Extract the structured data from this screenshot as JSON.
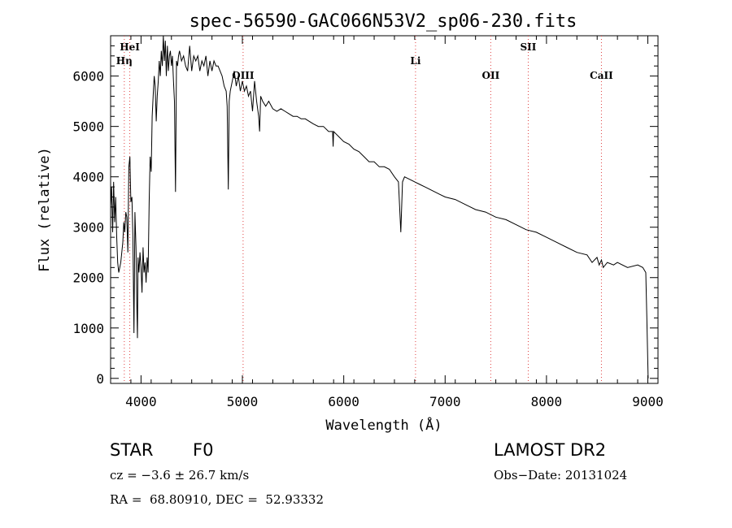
{
  "chart_data": {
    "type": "line",
    "title": "spec-56590-GAC066N53V2_sp06-230.fits",
    "xlabel": "Wavelength (Å)",
    "ylabel": "Flux (relative)",
    "xlim": [
      3700,
      9100
    ],
    "ylim": [
      -100,
      6800
    ],
    "xticks": [
      4000,
      5000,
      6000,
      7000,
      8000,
      9000
    ],
    "yticks": [
      0,
      1000,
      2000,
      3000,
      4000,
      5000,
      6000
    ],
    "lines": [
      {
        "label": "HeI",
        "x": 3889,
        "row": "top"
      },
      {
        "label": "Hη",
        "x": 3835,
        "row": "second"
      },
      {
        "label": "OIII",
        "x": 5007,
        "row": "third"
      },
      {
        "label": "Li",
        "x": 6708,
        "row": "second"
      },
      {
        "label": "SII",
        "x": 7820,
        "row": "top"
      },
      {
        "label": "OII",
        "x": 7450,
        "row": "third"
      },
      {
        "label": "CaII",
        "x": 8542,
        "row": "third"
      }
    ],
    "series": [
      {
        "x": [
          3700,
          3710,
          3720,
          3730,
          3740,
          3750,
          3760,
          3770,
          3780,
          3800,
          3820,
          3830,
          3835,
          3840,
          3850,
          3860,
          3870,
          3880,
          3890,
          3900,
          3910,
          3920,
          3930,
          3940,
          3950,
          3960,
          3965,
          3970,
          3980,
          3990,
          4000,
          4010,
          4020,
          4030,
          4040,
          4050,
          4060,
          4070,
          4080,
          4090,
          4100,
          4110,
          4120,
          4130,
          4140,
          4150,
          4160,
          4170,
          4180,
          4190,
          4200,
          4210,
          4220,
          4230,
          4240,
          4250,
          4260,
          4270,
          4280,
          4290,
          4300,
          4310,
          4320,
          4330,
          4340,
          4350,
          4360,
          4370,
          4380,
          4400,
          4420,
          4440,
          4460,
          4480,
          4500,
          4520,
          4540,
          4560,
          4580,
          4600,
          4620,
          4640,
          4660,
          4680,
          4700,
          4720,
          4740,
          4760,
          4780,
          4800,
          4820,
          4840,
          4850,
          4861,
          4870,
          4880,
          4900,
          4920,
          4940,
          4960,
          4980,
          5000,
          5020,
          5040,
          5060,
          5080,
          5100,
          5120,
          5140,
          5160,
          5170,
          5180,
          5200,
          5230,
          5260,
          5300,
          5340,
          5380,
          5420,
          5460,
          5500,
          5540,
          5580,
          5620,
          5660,
          5700,
          5750,
          5800,
          5850,
          5890,
          5895,
          5900,
          5950,
          6000,
          6050,
          6100,
          6150,
          6200,
          6250,
          6300,
          6350,
          6400,
          6450,
          6500,
          6540,
          6563,
          6580,
          6600,
          6650,
          6700,
          6750,
          6800,
          6850,
          6900,
          6950,
          7000,
          7100,
          7200,
          7300,
          7400,
          7500,
          7600,
          7700,
          7800,
          7900,
          8000,
          8100,
          8200,
          8300,
          8400,
          8450,
          8498,
          8520,
          8542,
          8560,
          8600,
          8662,
          8700,
          8800,
          8900,
          8950,
          8980,
          8990,
          9000,
          9003
        ],
        "y": [
          3400,
          3800,
          2900,
          3900,
          3100,
          3600,
          2800,
          2300,
          2100,
          2300,
          2700,
          3100,
          3000,
          2900,
          3300,
          3200,
          2500,
          4200,
          4400,
          3500,
          3600,
          2800,
          900,
          3300,
          2600,
          1300,
          800,
          2400,
          2100,
          2500,
          2200,
          1700,
          2600,
          2100,
          2300,
          1900,
          2400,
          2100,
          3500,
          4400,
          4100,
          5200,
          5600,
          6000,
          5800,
          5100,
          5600,
          5900,
          6300,
          6000,
          6500,
          6200,
          6800,
          6300,
          6700,
          6000,
          6600,
          6100,
          6400,
          6500,
          6200,
          6400,
          5900,
          5500,
          3700,
          6300,
          6200,
          6400,
          6500,
          6300,
          6400,
          6200,
          6100,
          6600,
          6100,
          6400,
          6300,
          6400,
          6100,
          6300,
          6200,
          6400,
          6000,
          6300,
          6100,
          6300,
          6200,
          6200,
          6100,
          6000,
          5800,
          5700,
          5400,
          3750,
          5500,
          5700,
          5900,
          6100,
          5800,
          6000,
          5700,
          5900,
          5700,
          5800,
          5600,
          5700,
          5300,
          5900,
          5500,
          5200,
          4900,
          5600,
          5500,
          5400,
          5500,
          5350,
          5300,
          5350,
          5300,
          5250,
          5200,
          5200,
          5150,
          5150,
          5100,
          5050,
          5000,
          5000,
          4900,
          4900,
          4600,
          4900,
          4800,
          4700,
          4650,
          4550,
          4500,
          4400,
          4300,
          4300,
          4200,
          4200,
          4150,
          4000,
          3900,
          2900,
          3900,
          4000,
          3950,
          3900,
          3850,
          3800,
          3750,
          3700,
          3650,
          3600,
          3550,
          3450,
          3350,
          3300,
          3200,
          3150,
          3050,
          2950,
          2900,
          2800,
          2700,
          2600,
          2500,
          2450,
          2300,
          2400,
          2250,
          2350,
          2200,
          2300,
          2250,
          2300,
          2200,
          2250,
          2200,
          2100,
          1200,
          300,
          0
        ]
      }
    ]
  },
  "info": {
    "object_type": "STAR",
    "subclass": "F0",
    "survey": "LAMOST DR2",
    "cz": "cz = −3.6 ± 26.7 km/s",
    "obs_date": "Obs−Date: 20131024",
    "coords": "RA =  68.80910, DEC =  52.93332"
  }
}
